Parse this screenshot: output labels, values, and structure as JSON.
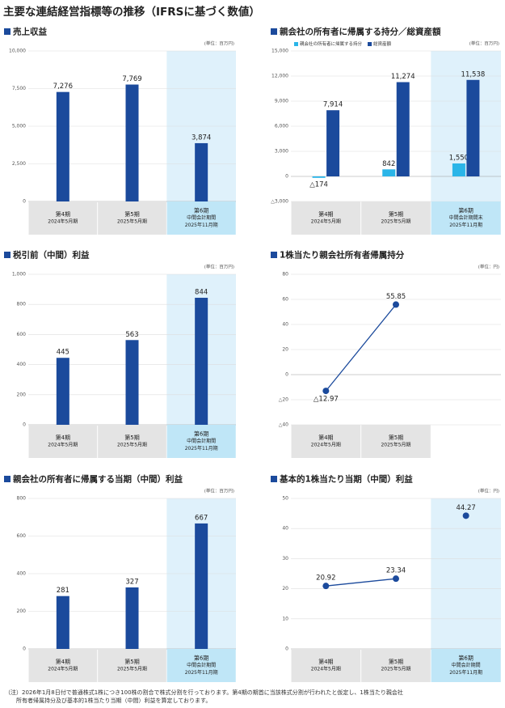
{
  "title": "主要な連結経営指標等の推移（IFRSに基づく数値）",
  "chart_data": [
    {
      "type": "bar",
      "title": "売上収益",
      "unit": "(単位：百万円)",
      "categories": [
        [
          "第4期",
          "2024年5月期"
        ],
        [
          "第5期",
          "2025年5月期"
        ],
        [
          "第6期",
          "中間会計期間",
          "2025年11月期"
        ]
      ],
      "series": [
        {
          "color": "#1b4a9c",
          "values": [
            7276,
            7769,
            3874
          ],
          "value_labels": [
            "7,276",
            "7,769",
            "3,874"
          ]
        }
      ],
      "ylim": [
        0,
        10000
      ],
      "yticks": [
        0,
        {
          "value": 2500,
          "label": "2,500"
        },
        {
          "value": 5000,
          "label": "5,000"
        },
        {
          "value": 7500,
          "label": "7,500"
        },
        {
          "value": 10000,
          "label": "10,000"
        }
      ],
      "grid": true,
      "highlight": 2
    },
    {
      "type": "bar",
      "title": "親会社の所有者に帰属する持分／総資産額",
      "unit": "(単位：百万円)",
      "categories": [
        [
          "第4期",
          "2024年5月期"
        ],
        [
          "第5期",
          "2025年5月期"
        ],
        [
          "第6期",
          "中間会計期間末",
          "2025年11月期"
        ]
      ],
      "series": [
        {
          "name": "親会社の所有者に帰属する持分",
          "color": "#2bb5e8",
          "values": [
            -174,
            842,
            1550
          ],
          "value_labels": [
            "△174",
            "842",
            "1,550"
          ]
        },
        {
          "name": "総資産額",
          "color": "#1b4a9c",
          "values": [
            7914,
            11274,
            11538
          ],
          "value_labels": [
            "7,914",
            "11,274",
            "11,538"
          ]
        }
      ],
      "ylim": [
        -3000,
        15000
      ],
      "yticks": [
        {
          "value": -3000,
          "label": "△3,000"
        },
        0,
        {
          "value": 3000,
          "label": "3,000"
        },
        {
          "value": 6000,
          "label": "6,000"
        },
        {
          "value": 9000,
          "label": "9,000"
        },
        {
          "value": 12000,
          "label": "12,000"
        },
        {
          "value": 15000,
          "label": "15,000"
        }
      ],
      "grid": true,
      "highlight": 2,
      "legend": "top-left"
    },
    {
      "type": "bar",
      "title": "税引前（中間）利益",
      "unit": "(単位：百万円)",
      "categories": [
        [
          "第4期",
          "2024年5月期"
        ],
        [
          "第5期",
          "2025年5月期"
        ],
        [
          "第6期",
          "中間会計期間",
          "2025年11月期"
        ]
      ],
      "series": [
        {
          "color": "#1b4a9c",
          "values": [
            445,
            563,
            844
          ]
        }
      ],
      "ylim": [
        0,
        1000
      ],
      "yticks": [
        0,
        200,
        400,
        600,
        800,
        {
          "value": 1000,
          "label": "1,000"
        }
      ],
      "grid": true,
      "highlight": 2
    },
    {
      "type": "line",
      "title": "1株当たり親会社所有者帰属持分",
      "unit": "(単位：円)",
      "categories": [
        [
          "第4期",
          "2024年5月期"
        ],
        [
          "第5期",
          "2025年5月期"
        ]
      ],
      "series": [
        {
          "color": "#1b4a9c",
          "values": [
            -12.97,
            55.85
          ],
          "value_labels": [
            "△12.97",
            "55.85"
          ]
        }
      ],
      "ylim": [
        -40,
        80
      ],
      "yticks": [
        {
          "value": -40,
          "label": "△40"
        },
        {
          "value": -20,
          "label": "△20"
        },
        0,
        20,
        40,
        60,
        80
      ],
      "grid": true
    },
    {
      "type": "bar",
      "title": "親会社の所有者に帰属する当期（中間）利益",
      "unit": "(単位：百万円)",
      "categories": [
        [
          "第4期",
          "2024年5月期"
        ],
        [
          "第5期",
          "2025年5月期"
        ],
        [
          "第6期",
          "中間会計期間",
          "2025年11月期"
        ]
      ],
      "series": [
        {
          "color": "#1b4a9c",
          "values": [
            281,
            327,
            667
          ]
        }
      ],
      "ylim": [
        0,
        800
      ],
      "yticks": [
        0,
        200,
        400,
        600,
        800
      ],
      "grid": true,
      "highlight": 2
    },
    {
      "type": "line",
      "title": "基本的1株当たり当期（中間）利益",
      "unit": "(単位：円)",
      "categories": [
        [
          "第4期",
          "2024年5月期"
        ],
        [
          "第5期",
          "2025年5月期"
        ],
        [
          "第6期",
          "中間会計期間",
          "2025年11月期"
        ]
      ],
      "series": [
        {
          "color": "#1b4a9c",
          "values": [
            20.92,
            23.34,
            null
          ]
        },
        {
          "color": "#1b4a9c",
          "values": [
            null,
            null,
            44.27
          ]
        }
      ],
      "ylim": [
        0,
        50
      ],
      "yticks": [
        0,
        10,
        20,
        30,
        40,
        50
      ],
      "grid": true,
      "highlight": 2
    }
  ],
  "footnote": [
    "（注）2026年1月8日付で普通株式1株につき100株の割合で株式分割を行っております。第4期の期首に当該株式分割が行われたと仮定し、1株当たり親会社",
    "所有者帰属持分及び基本的1株当たり当期（中間）利益を算定しております。"
  ]
}
